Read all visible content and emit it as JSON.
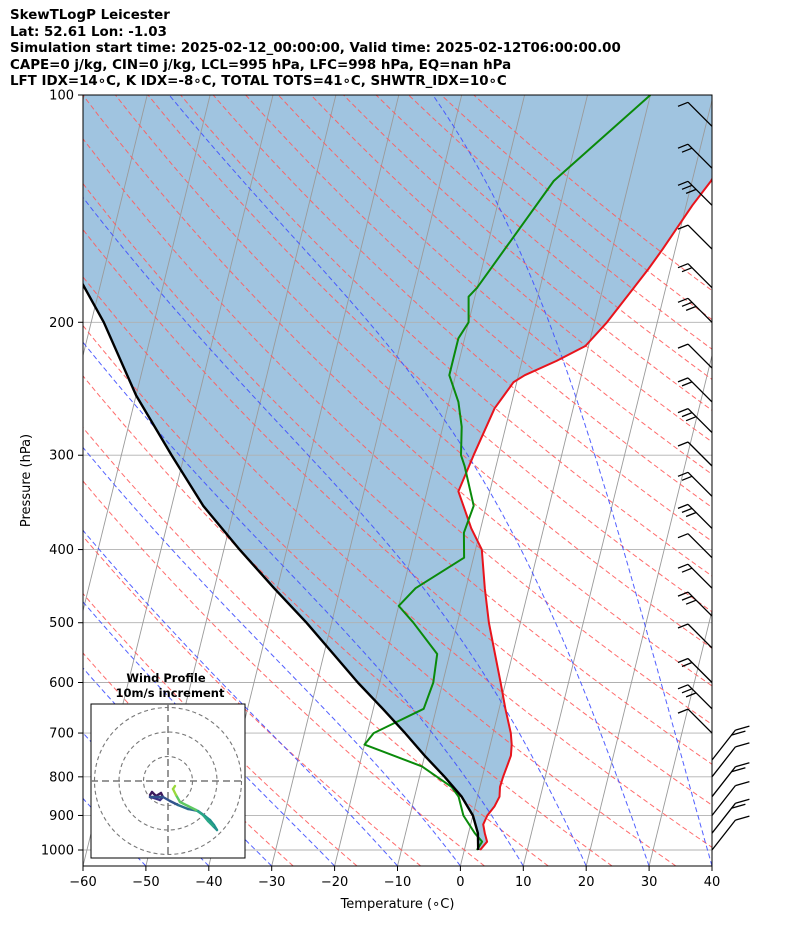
{
  "header": {
    "line1": "SkewTLogP Leicester",
    "line2": "Lat: 52.61   Lon: -1.03",
    "line3": "Simulation start time: 2025-02-12_00:00:00, Valid time: 2025-02-12T06:00:00.00",
    "line4": "CAPE=0 j/kg, CIN=0 j/kg, LCL=995 hPa, LFC=998 hPa, EQ=nan hPa",
    "line5": "LFT IDX=14∘C, K IDX=-8∘C, TOTAL TOTS=41∘C, SHWTR_IDX=10∘C"
  },
  "chart_data": [
    {
      "type": "skew-t",
      "xlabel": "Temperature (∘C)",
      "ylabel": "Pressure (hPa)",
      "xlim": [
        -60,
        40
      ],
      "ylim": [
        1050,
        100
      ],
      "y_scale": "log",
      "x_ticks": [
        -60,
        -50,
        -40,
        -30,
        -20,
        -10,
        0,
        10,
        20,
        30,
        40
      ],
      "y_ticks": [
        100,
        200,
        300,
        400,
        500,
        600,
        700,
        800,
        900,
        1000
      ],
      "grid": true,
      "colors": {
        "temperature": "#e8141c",
        "dewpoint": "#0a8a0a",
        "parcel": "#000000",
        "cape_fill": "#8fbadb",
        "dry_adiabat": "#ff5c5c",
        "moist_adiabat": "#3f4fff",
        "isotherm": "#9a9a9a",
        "mixing_ratio": "#3f4fff"
      },
      "series": [
        {
          "key": "temperature",
          "points": [
            [
              2.5,
              1000
            ],
            [
              3.3,
              975
            ],
            [
              2.6,
              950
            ],
            [
              2.0,
              925
            ],
            [
              2.3,
              900
            ],
            [
              3.1,
              875
            ],
            [
              3.5,
              850
            ],
            [
              3.2,
              825
            ],
            [
              3.3,
              800
            ],
            [
              3.5,
              775
            ],
            [
              3.7,
              750
            ],
            [
              3.4,
              725
            ],
            [
              2.8,
              700
            ],
            [
              1.0,
              650
            ],
            [
              -0.8,
              600
            ],
            [
              -2.8,
              550
            ],
            [
              -5.0,
              500
            ],
            [
              -7.0,
              450
            ],
            [
              -9.0,
              400
            ],
            [
              -11.5,
              375
            ],
            [
              -15.0,
              335
            ],
            [
              -14.0,
              300
            ],
            [
              -12.5,
              260
            ],
            [
              -11.5,
              250
            ],
            [
              -10.5,
              240
            ],
            [
              -9.0,
              235
            ],
            [
              -4.5,
              225
            ],
            [
              -0.5,
              215
            ],
            [
              2.0,
              200
            ],
            [
              6.5,
              170
            ],
            [
              8.0,
              160
            ],
            [
              11.0,
              140
            ],
            [
              13.0,
              130
            ],
            [
              17.5,
              100
            ]
          ]
        },
        {
          "key": "dewpoint",
          "points": [
            [
              2.0,
              1000
            ],
            [
              2.5,
              975
            ],
            [
              1.0,
              950
            ],
            [
              -1.5,
              900
            ],
            [
              -3.0,
              850
            ],
            [
              -4.5,
              825
            ],
            [
              -10.0,
              775
            ],
            [
              -20.0,
              725
            ],
            [
              -19.0,
              700
            ],
            [
              -12.0,
              650
            ],
            [
              -11.5,
              600
            ],
            [
              -12.0,
              550
            ],
            [
              -17.0,
              500
            ],
            [
              -20.0,
              475
            ],
            [
              -18.0,
              450
            ],
            [
              -11.5,
              410
            ],
            [
              -12.5,
              380
            ],
            [
              -12.0,
              350
            ],
            [
              -15.0,
              310
            ],
            [
              -16.0,
              300
            ],
            [
              -17.0,
              275
            ],
            [
              -18.5,
              255
            ],
            [
              -21.0,
              235
            ],
            [
              -21.0,
              225
            ],
            [
              -21.0,
              210
            ],
            [
              -20.0,
              200
            ],
            [
              -21.0,
              185
            ],
            [
              -20.0,
              180
            ],
            [
              -12.0,
              130
            ],
            [
              0.0,
              100
            ]
          ]
        },
        {
          "key": "parcel",
          "points": [
            [
              2.2,
              1000
            ],
            [
              1.5,
              950
            ],
            [
              0.0,
              900
            ],
            [
              -2.5,
              850
            ],
            [
              -6.0,
              800
            ],
            [
              -10.0,
              750
            ],
            [
              -14.0,
              700
            ],
            [
              -18.5,
              650
            ],
            [
              -23.5,
              600
            ],
            [
              -28.5,
              550
            ],
            [
              -34.0,
              500
            ],
            [
              -40.5,
              450
            ],
            [
              -47.5,
              400
            ],
            [
              -55.0,
              350
            ],
            [
              -62.0,
              300
            ],
            [
              -70.0,
              250
            ],
            [
              -78.0,
              200
            ],
            [
              -90.0,
              150
            ],
            [
              -100.0,
              100
            ]
          ]
        }
      ],
      "wind_barbs_pressure_hPa": [
        110,
        125,
        140,
        160,
        180,
        200,
        230,
        255,
        280,
        310,
        340,
        375,
        410,
        450,
        490,
        540,
        600,
        650,
        700,
        760,
        800,
        850,
        900,
        950,
        1000
      ]
    },
    {
      "type": "hodograph",
      "title": "Wind Profile",
      "subtitle": "10m/s increment",
      "rings_ms": [
        10,
        20,
        30
      ]
    }
  ]
}
